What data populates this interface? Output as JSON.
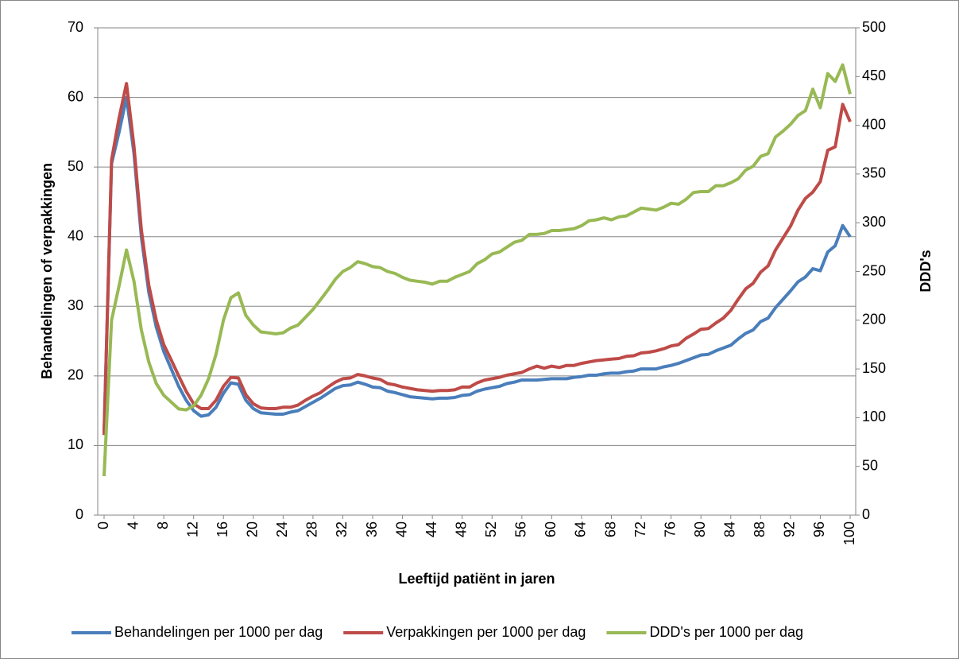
{
  "chart_data": {
    "type": "line",
    "y_label": "Behandelingen of verpakkingen",
    "y2_label": "DDD's",
    "x_label": "Leeftijd patiënt in jaren",
    "x": [
      0,
      1,
      2,
      3,
      4,
      5,
      6,
      7,
      8,
      9,
      10,
      11,
      12,
      13,
      14,
      15,
      16,
      17,
      18,
      19,
      20,
      21,
      22,
      23,
      24,
      25,
      26,
      27,
      28,
      29,
      30,
      31,
      32,
      33,
      34,
      35,
      36,
      37,
      38,
      39,
      40,
      41,
      42,
      43,
      44,
      45,
      46,
      47,
      48,
      49,
      50,
      51,
      52,
      53,
      54,
      55,
      56,
      57,
      58,
      59,
      60,
      61,
      62,
      63,
      64,
      65,
      66,
      67,
      68,
      69,
      70,
      71,
      72,
      73,
      74,
      75,
      76,
      77,
      78,
      79,
      80,
      81,
      82,
      83,
      84,
      85,
      86,
      87,
      88,
      89,
      90,
      91,
      92,
      93,
      94,
      95,
      96,
      97,
      98,
      99,
      100
    ],
    "xlim": [
      0,
      100
    ],
    "xticks": [
      0,
      4,
      8,
      12,
      16,
      20,
      24,
      28,
      32,
      36,
      40,
      44,
      48,
      52,
      56,
      60,
      64,
      68,
      72,
      76,
      80,
      84,
      88,
      92,
      96,
      100
    ],
    "ylim": [
      0,
      70
    ],
    "yticks": [
      0,
      10,
      20,
      30,
      40,
      50,
      60,
      70
    ],
    "y2lim": [
      0,
      500
    ],
    "y2ticks": [
      0,
      50,
      100,
      150,
      200,
      250,
      300,
      350,
      400,
      450,
      500
    ],
    "grid": true,
    "legend": "bottom",
    "series": [
      {
        "name": "Behandelingen per 1000 per dag",
        "color": "#4a7ebb",
        "values": [
          12,
          50.5,
          55,
          60,
          52,
          40,
          32,
          27,
          23.5,
          21,
          18.5,
          16.5,
          15,
          14.2,
          14.4,
          15.5,
          17.5,
          19,
          18.8,
          16.5,
          15.3,
          14.7,
          14.6,
          14.5,
          14.5,
          14.8,
          15,
          15.6,
          16.2,
          16.8,
          17.5,
          18.2,
          18.6,
          18.7,
          19.1,
          18.8,
          18.4,
          18.3,
          17.8,
          17.6,
          17.3,
          17,
          16.9,
          16.8,
          16.7,
          16.8,
          16.8,
          16.9,
          17.2,
          17.3,
          17.8,
          18.1,
          18.3,
          18.5,
          18.9,
          19.1,
          19.4,
          19.4,
          19.4,
          19.5,
          19.6,
          19.6,
          19.6,
          19.8,
          19.9,
          20.1,
          20.1,
          20.3,
          20.4,
          20.4,
          20.6,
          20.7,
          21,
          21,
          21,
          21.3,
          21.5,
          21.8,
          22.2,
          22.6,
          23,
          23.1,
          23.6,
          24,
          24.4,
          25.3,
          26.1,
          26.6,
          27.8,
          28.3,
          29.8,
          31,
          32.2,
          33.5,
          34.2,
          35.4,
          35.1,
          37.8,
          38.7,
          41.6,
          40
        ]
      },
      {
        "name": "Verpakkingen per 1000 per dag",
        "color": "#be4b48",
        "values": [
          11.5,
          51,
          57,
          62,
          53,
          41,
          33,
          28,
          24.5,
          22.3,
          20,
          17.8,
          16,
          15.3,
          15.3,
          16.5,
          18.5,
          19.8,
          19.7,
          17.3,
          16,
          15.4,
          15.3,
          15.3,
          15.5,
          15.5,
          15.8,
          16.5,
          17.1,
          17.6,
          18.4,
          19.1,
          19.6,
          19.7,
          20.2,
          20,
          19.7,
          19.5,
          18.9,
          18.7,
          18.4,
          18.2,
          18,
          17.9,
          17.8,
          17.9,
          17.9,
          18,
          18.4,
          18.4,
          19,
          19.4,
          19.6,
          19.8,
          20.1,
          20.3,
          20.5,
          21,
          21.4,
          21.1,
          21.4,
          21.2,
          21.5,
          21.5,
          21.8,
          22,
          22.2,
          22.3,
          22.4,
          22.5,
          22.8,
          22.9,
          23.3,
          23.4,
          23.6,
          23.9,
          24.3,
          24.5,
          25.4,
          26,
          26.7,
          26.8,
          27.6,
          28.3,
          29.4,
          31,
          32.5,
          33.3,
          34.9,
          35.8,
          38.1,
          39.8,
          41.5,
          43.8,
          45.5,
          46.4,
          47.9,
          52.4,
          52.9,
          59,
          56.5
        ]
      },
      {
        "name": "DDD's per 1000 per dag",
        "color": "#98b954",
        "axis": "y2",
        "values": [
          40,
          200,
          235,
          272,
          240,
          190,
          157,
          135,
          123,
          116,
          109,
          108,
          112,
          123,
          140,
          165,
          200,
          223,
          228,
          205,
          195,
          188,
          187,
          186,
          187,
          192,
          195,
          203,
          211,
          221,
          231,
          242,
          250,
          254,
          260,
          258,
          255,
          254,
          250,
          248,
          244,
          241,
          240,
          239,
          237,
          240,
          240,
          244,
          247,
          250,
          258,
          262,
          268,
          270,
          275,
          280,
          282,
          288,
          288,
          289,
          292,
          292,
          293,
          294,
          297,
          302,
          303,
          305,
          303,
          306,
          307,
          311,
          315,
          314,
          313,
          316,
          320,
          319,
          324,
          331,
          332,
          332,
          338,
          338,
          341,
          345,
          354,
          358,
          368,
          371,
          388,
          394,
          401,
          410,
          415,
          437,
          418,
          453,
          445,
          462,
          432
        ]
      }
    ]
  }
}
